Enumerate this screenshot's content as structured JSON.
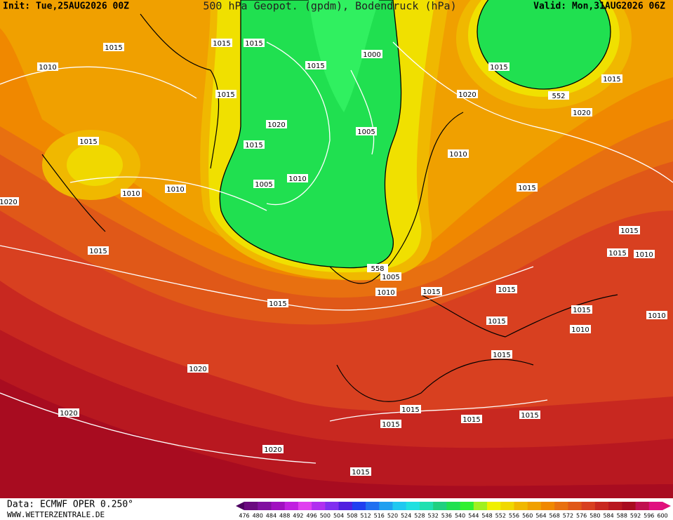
{
  "header": {
    "init": "Init: Tue,25AUG2026 00Z",
    "title": "500 hPa Geopot. (gpdm), Bodendruck (hPa)",
    "valid": "Valid: Mon,31AUG2026 06Z"
  },
  "map": {
    "isobar_labels": [
      1015,
      1015,
      1015,
      1010,
      1015,
      1000,
      1015,
      1015,
      1020,
      1015,
      1020,
      552,
      1020,
      1005,
      1015,
      1015,
      1010,
      1010,
      1005,
      1010,
      1010,
      1015,
      1020,
      1015,
      1015,
      1010,
      1015,
      558,
      1005,
      1010,
      1015,
      1015,
      1015,
      1015,
      1015,
      1010,
      1010,
      1015,
      1020,
      1015,
      1020,
      1015,
      1015,
      1015,
      1020,
      1015
    ]
  },
  "footer": {
    "source": "Data: ECMWF OPER 0.250°",
    "site": "WWW.WETTERZENTRALE.DE"
  },
  "colorbar": {
    "ticks": [
      476,
      480,
      484,
      488,
      492,
      496,
      500,
      504,
      508,
      512,
      516,
      520,
      524,
      528,
      532,
      536,
      540,
      544,
      548,
      552,
      556,
      560,
      564,
      568,
      572,
      576,
      580,
      584,
      588,
      592,
      596,
      600
    ],
    "low_color": "#4b0060",
    "high_color": "#e0107a",
    "colors": [
      "#6a0a80",
      "#8010a0",
      "#a010c0",
      "#c020e0",
      "#e040f0",
      "#b030f0",
      "#8030f0",
      "#5020e0",
      "#2040f0",
      "#2070f0",
      "#20a0f0",
      "#20c8f0",
      "#20e0e0",
      "#20e0b0",
      "#20d080",
      "#20e050",
      "#30f030",
      "#a0f020",
      "#f0f000",
      "#f0d800",
      "#f0b800",
      "#f0a000",
      "#f08800",
      "#e87010",
      "#e05818",
      "#d84020",
      "#c82820",
      "#b81820",
      "#a80c20",
      "#c01050",
      "#e01080"
    ]
  }
}
